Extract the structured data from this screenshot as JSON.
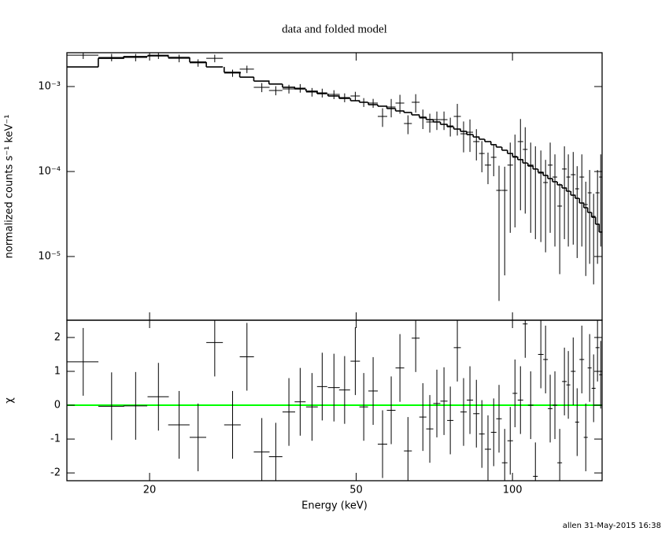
{
  "chart_data": [
    {
      "type": "errorbar",
      "title": "data and folded model",
      "ylabel": "normalized counts s⁻¹ keV⁻¹",
      "xlog": true,
      "ylog": true,
      "xlim": [
        13.86,
        148.8
      ],
      "ylim": [
        1.78e-06,
        0.0025
      ],
      "xticks": [
        20,
        50,
        100
      ],
      "yticks": [
        {
          "value": 1e-05,
          "label": "10⁻⁵"
        },
        {
          "value": 0.0001,
          "label": "10⁻⁴"
        },
        {
          "value": 0.001,
          "label": "10⁻³"
        }
      ],
      "x": [
        14.9,
        16.9,
        18.8,
        20.8,
        22.8,
        24.8,
        26.7,
        28.9,
        30.8,
        32.9,
        35.0,
        37.1,
        39.0,
        41.1,
        43.0,
        45.3,
        47.5,
        49.8,
        51.7,
        53.9,
        56.2,
        58.4,
        60.7,
        62.9,
        65.1,
        67.2,
        69.3,
        71.5,
        73.8,
        75.9,
        78.3,
        80.5,
        82.8,
        85.2,
        87.3,
        89.7,
        92.0,
        94.2,
        96.6,
        99.0,
        101.1,
        103.6,
        105.8,
        108.4,
        110.7,
        113.4,
        115.8,
        118.2,
        120.7,
        123.3,
        125.9,
        128.1,
        130.9,
        133.2,
        136.0,
        138.4,
        140.8,
        143.3,
        145.8,
        147.9
      ],
      "xerr": [
        1.04,
        0.97,
        0.99,
        0.98,
        1.08,
        0.91,
        0.98,
        1.06,
        0.97,
        1.15,
        1.04,
        1.04,
        0.95,
        1.07,
        0.97,
        1.18,
        1.16,
        1.04,
        0.99,
        1.13,
        1.18,
        1.12,
        1.17,
        1.1,
        1.14,
        1.06,
        1.09,
        1.12,
        1.16,
        1.06,
        1.23,
        1.12,
        1.16,
        1.19,
        1.07,
        1.25,
        1.12,
        1.15,
        1.18,
        1.21,
        1.06,
        1.26,
        1.11,
        1.32,
        1.16,
        1.38,
        1.21,
        1.24,
        1.26,
        1.29,
        1.32,
        1.12,
        1.37,
        1.16,
        1.42,
        1.21,
        1.23,
        1.25,
        1.27,
        1.03
      ],
      "series": [
        {
          "color": "#000000",
          "style": "errorbar",
          "values": [
            0.00234,
            0.0022,
            0.0022,
            0.00234,
            0.00215,
            0.0019,
            0.00215,
            0.00144,
            0.0016,
            0.000979,
            0.000899,
            0.000938,
            0.000958,
            0.000861,
            0.000843,
            0.000808,
            0.000742,
            0.000774,
            0.000653,
            0.000639,
            0.000445,
            0.000574,
            0.000639,
            0.000367,
            0.000653,
            0.000426,
            0.000383,
            0.000408,
            0.000408,
            0.000344,
            0.000445,
            0.000278,
            0.00029,
            0.000225,
            0.000163,
            0.000119,
            0.000147,
            6e-05,
            6e-05,
            0.000119,
            0.000147,
            0.000225,
            0.000182,
            0.000119,
            0.000107,
            9.58e-05,
            7.42e-05,
            0.000119,
            8.61e-05,
            3.92e-05,
            0.000107,
            8.61e-05,
            9.18e-05,
            6.26e-05,
            8.61e-05,
            4.09e-05,
            5.62e-05,
            2.97e-05,
            5.62e-05,
            8.61e-05
          ],
          "errors": [
            0.00023,
            0.00022,
            0.00022,
            0.00023,
            0.00022,
            0.00019,
            0.00022,
            0.00014,
            0.00016,
            0.00012,
            0.00011,
            0.00011,
            0.00011,
            0.0001,
            0.0001,
            9.7e-05,
            8.9e-05,
            9.3e-05,
            7.8e-05,
            7.7e-05,
            0.00011,
            0.00014,
            0.00016,
            9.2e-05,
            0.00016,
            0.00011,
            9.6e-05,
            0.0001,
            0.0001,
            8.6e-05,
            0.00018,
            0.00011,
            0.00012,
            9e-05,
            6.5e-05,
            4.8e-05,
            5.9e-05,
            5.7e-05,
            5.4e-05,
            0.0001,
            0.000125,
            0.00019,
            0.00015,
            0.0001,
            9.1e-05,
            8.1e-05,
            6.3e-05,
            0.0001,
            7.3e-05,
            3.3e-05,
            9.1e-05,
            7.3e-05,
            7.8e-05,
            5.3e-05,
            7.3e-05,
            3.5e-05,
            4.8e-05,
            2.5e-05,
            4.8e-05,
            7.3e-05
          ]
        },
        {
          "color": "#000000",
          "style": "step",
          "values": [
            0.0017,
            0.00215,
            0.00225,
            0.0023,
            0.0022,
            0.00194,
            0.0017,
            0.00147,
            0.00129,
            0.00116,
            0.00107,
            0.000979,
            0.000938,
            0.00088,
            0.000825,
            0.000774,
            0.000726,
            0.000681,
            0.000653,
            0.000612,
            0.000587,
            0.000551,
            0.000516,
            0.000495,
            0.000464,
            0.000435,
            0.000408,
            0.000383,
            0.000359,
            0.000337,
            0.000316,
            0.000297,
            0.000272,
            0.000255,
            0.00024,
            0.000225,
            0.000207,
            0.000194,
            0.000178,
            0.000163,
            0.00015,
            0.000138,
            0.000126,
            0.000116,
            0.000107,
            9.79e-05,
            9e-05,
            8.26e-05,
            7.58e-05,
            6.97e-05,
            6.4e-05,
            5.87e-05,
            5.27e-05,
            4.84e-05,
            4.26e-05,
            3.75e-05,
            3.3e-05,
            2.9e-05,
            2.4e-05,
            1.94e-05
          ]
        }
      ]
    },
    {
      "type": "errorbar",
      "xlabel": "Energy (keV)",
      "ylabel": "χ",
      "xlog": true,
      "ylog": false,
      "xlim": [
        13.86,
        148.8
      ],
      "ylim": [
        -2.23,
        2.51
      ],
      "xticks": [
        20,
        50,
        100
      ],
      "yticks": [
        -2,
        -1,
        0,
        1,
        2
      ],
      "reference_line": {
        "value": 0,
        "color": "#00ff00"
      },
      "x": [
        14.9,
        16.9,
        18.8,
        20.8,
        22.8,
        24.8,
        26.7,
        28.9,
        30.8,
        32.9,
        35.0,
        37.1,
        39.0,
        41.1,
        43.0,
        45.3,
        47.5,
        49.8,
        51.7,
        53.9,
        56.2,
        58.4,
        60.7,
        62.9,
        65.1,
        67.2,
        69.3,
        71.5,
        73.8,
        75.9,
        78.3,
        80.5,
        82.8,
        85.2,
        87.3,
        89.7,
        92.0,
        94.2,
        96.6,
        99.0,
        101.1,
        103.6,
        105.8,
        108.4,
        110.7,
        113.4,
        115.8,
        118.2,
        120.7,
        123.3,
        125.9,
        128.1,
        130.9,
        133.2,
        136.0,
        138.4,
        140.8,
        143.3,
        145.8,
        147.9
      ],
      "xerr": [
        1.04,
        0.97,
        0.99,
        0.98,
        1.08,
        0.91,
        0.98,
        1.06,
        0.97,
        1.15,
        1.04,
        1.04,
        0.95,
        1.07,
        0.97,
        1.18,
        1.16,
        1.04,
        0.99,
        1.13,
        1.18,
        1.12,
        1.17,
        1.1,
        1.14,
        1.06,
        1.09,
        1.12,
        1.16,
        1.06,
        1.23,
        1.12,
        1.16,
        1.19,
        1.07,
        1.25,
        1.12,
        1.15,
        1.18,
        1.21,
        1.06,
        1.26,
        1.11,
        1.32,
        1.16,
        1.38,
        1.21,
        1.24,
        1.26,
        1.29,
        1.32,
        1.12,
        1.37,
        1.16,
        1.42,
        1.21,
        1.23,
        1.25,
        1.27,
        1.03
      ],
      "series": [
        {
          "color": "#000000",
          "style": "errorbar",
          "values": [
            1.28,
            -0.03,
            -0.02,
            0.25,
            -0.58,
            -0.95,
            1.85,
            -0.58,
            1.43,
            -1.38,
            -1.52,
            -0.2,
            0.1,
            -0.05,
            0.55,
            0.52,
            0.45,
            1.3,
            -0.05,
            0.42,
            -1.15,
            -0.15,
            1.1,
            -1.35,
            1.98,
            -0.35,
            -0.7,
            0.05,
            0.12,
            -0.45,
            1.7,
            -0.2,
            0.15,
            -0.25,
            -0.85,
            -1.3,
            -0.8,
            -0.4,
            -1.7,
            -1.05,
            0.35,
            0.15,
            2.4,
            0.0,
            -2.1,
            1.5,
            1.35,
            -0.1,
            0.0,
            -1.7,
            0.7,
            0.6,
            1.0,
            -0.5,
            1.35,
            -0.95,
            1.1,
            0.5,
            1.7,
            0.9
          ],
          "errors": [
            1,
            1,
            1,
            1,
            1,
            1,
            1,
            1,
            1,
            1,
            1,
            1,
            1,
            1,
            1,
            1,
            1,
            1,
            1,
            1,
            1,
            1,
            1,
            1,
            1,
            1,
            1,
            1,
            1,
            1,
            1,
            1,
            1,
            1,
            1,
            1,
            1,
            1,
            1,
            1,
            1,
            1,
            1,
            1,
            1,
            1,
            1,
            1,
            1,
            1,
            1,
            1,
            1,
            1,
            1,
            1,
            1,
            1,
            1,
            1
          ]
        }
      ]
    }
  ],
  "footer": "allen 31-May-2015 16:38"
}
